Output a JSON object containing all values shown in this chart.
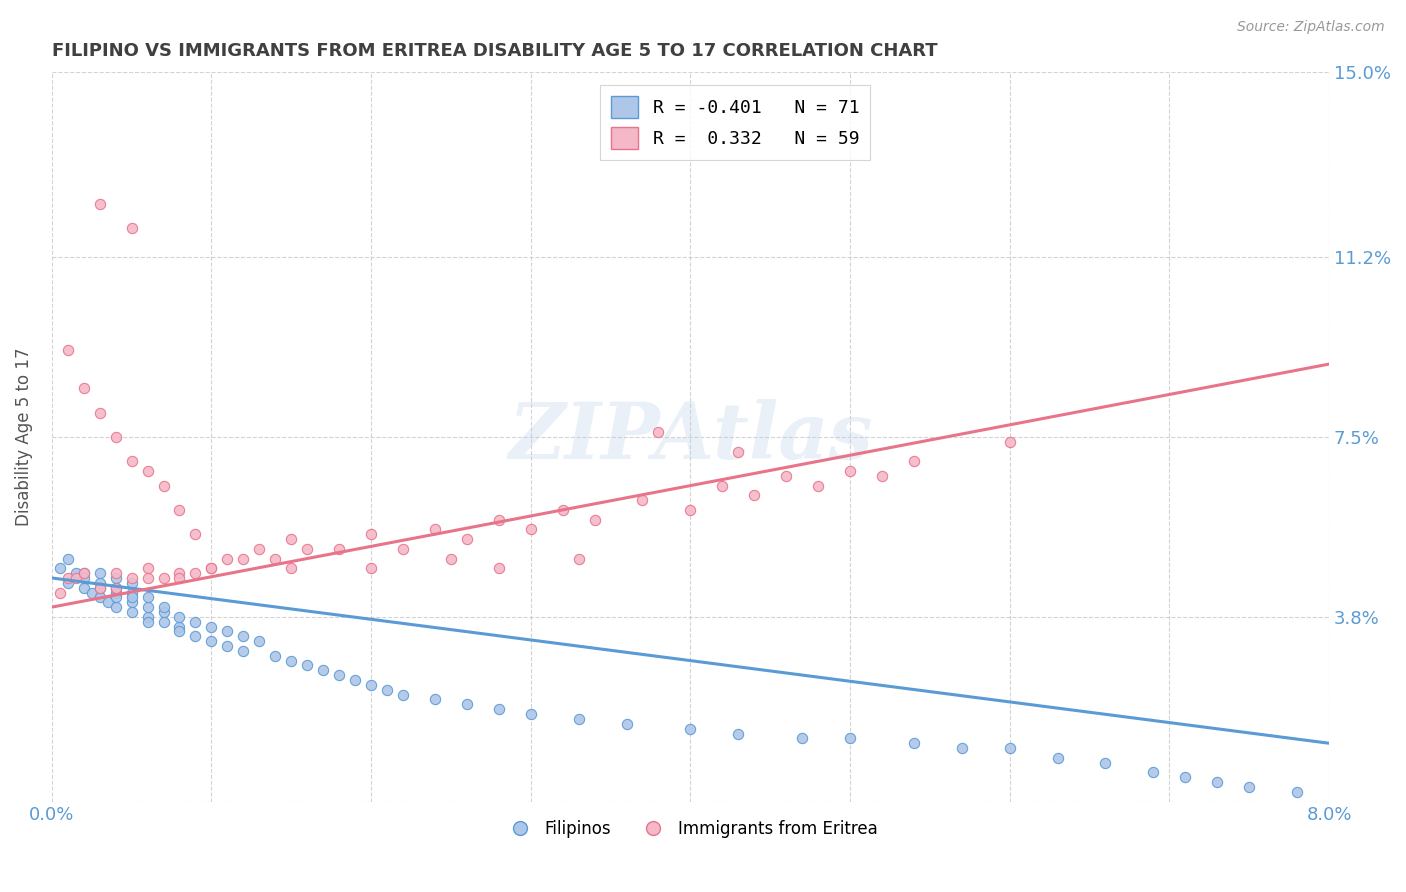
{
  "title": "FILIPINO VS IMMIGRANTS FROM ERITREA DISABILITY AGE 5 TO 17 CORRELATION CHART",
  "source": "Source: ZipAtlas.com",
  "ylabel": "Disability Age 5 to 17",
  "xmin": 0.0,
  "xmax": 0.08,
  "ymin": 0.0,
  "ymax": 0.15,
  "ytick_vals": [
    0.0,
    0.038,
    0.075,
    0.112,
    0.15
  ],
  "ytick_labels": [
    "",
    "3.8%",
    "7.5%",
    "11.2%",
    "15.0%"
  ],
  "xtick_vals": [
    0.0,
    0.01,
    0.02,
    0.03,
    0.04,
    0.05,
    0.06,
    0.07,
    0.08
  ],
  "xtick_labels": [
    "0.0%",
    "",
    "",
    "",
    "",
    "",
    "",
    "",
    "8.0%"
  ],
  "legend_entries": [
    {
      "label": "R = -0.401   N = 71",
      "color": "#aec6e8"
    },
    {
      "label": "R =  0.332   N = 59",
      "color": "#f4b8c8"
    }
  ],
  "bottom_legend": [
    "Filipinos",
    "Immigrants from Eritrea"
  ],
  "blue_color": "#5b9bd5",
  "pink_color": "#e8748a",
  "blue_scatter_color": "#aec6e8",
  "pink_scatter_color": "#f4b8c8",
  "watermark": "ZIPAtlas",
  "background_color": "#ffffff",
  "grid_color": "#c8c8c8",
  "title_color": "#404040",
  "axis_label_color": "#5b9bd5",
  "blue_line_x": [
    0.0,
    0.08
  ],
  "blue_line_y": [
    0.046,
    0.012
  ],
  "pink_line_x": [
    0.0,
    0.08
  ],
  "pink_line_y": [
    0.04,
    0.09
  ],
  "filipinos_x": [
    0.0005,
    0.001,
    0.001,
    0.0015,
    0.002,
    0.002,
    0.002,
    0.0025,
    0.003,
    0.003,
    0.003,
    0.003,
    0.0035,
    0.004,
    0.004,
    0.004,
    0.004,
    0.004,
    0.005,
    0.005,
    0.005,
    0.005,
    0.005,
    0.006,
    0.006,
    0.006,
    0.006,
    0.007,
    0.007,
    0.007,
    0.008,
    0.008,
    0.008,
    0.009,
    0.009,
    0.01,
    0.01,
    0.011,
    0.011,
    0.012,
    0.012,
    0.013,
    0.014,
    0.015,
    0.016,
    0.017,
    0.018,
    0.019,
    0.02,
    0.021,
    0.022,
    0.024,
    0.026,
    0.028,
    0.03,
    0.033,
    0.036,
    0.04,
    0.043,
    0.047,
    0.05,
    0.054,
    0.057,
    0.06,
    0.063,
    0.066,
    0.069,
    0.071,
    0.073,
    0.075,
    0.078
  ],
  "filipinos_y": [
    0.048,
    0.05,
    0.045,
    0.047,
    0.044,
    0.047,
    0.046,
    0.043,
    0.045,
    0.042,
    0.047,
    0.044,
    0.041,
    0.043,
    0.046,
    0.04,
    0.044,
    0.042,
    0.041,
    0.043,
    0.039,
    0.042,
    0.045,
    0.038,
    0.04,
    0.042,
    0.037,
    0.039,
    0.037,
    0.04,
    0.036,
    0.038,
    0.035,
    0.037,
    0.034,
    0.036,
    0.033,
    0.035,
    0.032,
    0.034,
    0.031,
    0.033,
    0.03,
    0.029,
    0.028,
    0.027,
    0.026,
    0.025,
    0.024,
    0.023,
    0.022,
    0.021,
    0.02,
    0.019,
    0.018,
    0.017,
    0.016,
    0.015,
    0.014,
    0.013,
    0.013,
    0.012,
    0.011,
    0.011,
    0.009,
    0.008,
    0.006,
    0.005,
    0.004,
    0.003,
    0.002
  ],
  "eritrea_x": [
    0.0005,
    0.001,
    0.001,
    0.0015,
    0.002,
    0.002,
    0.003,
    0.003,
    0.003,
    0.004,
    0.004,
    0.005,
    0.005,
    0.005,
    0.006,
    0.006,
    0.007,
    0.007,
    0.008,
    0.008,
    0.009,
    0.009,
    0.01,
    0.011,
    0.012,
    0.013,
    0.014,
    0.015,
    0.016,
    0.018,
    0.02,
    0.022,
    0.024,
    0.026,
    0.028,
    0.03,
    0.032,
    0.034,
    0.037,
    0.04,
    0.042,
    0.044,
    0.046,
    0.048,
    0.05,
    0.052,
    0.054,
    0.038,
    0.043,
    0.06,
    0.028,
    0.033,
    0.02,
    0.025,
    0.015,
    0.01,
    0.008,
    0.006,
    0.004
  ],
  "eritrea_y": [
    0.043,
    0.046,
    0.093,
    0.046,
    0.047,
    0.085,
    0.044,
    0.08,
    0.123,
    0.047,
    0.075,
    0.046,
    0.07,
    0.118,
    0.048,
    0.068,
    0.046,
    0.065,
    0.047,
    0.06,
    0.047,
    0.055,
    0.048,
    0.05,
    0.05,
    0.052,
    0.05,
    0.054,
    0.052,
    0.052,
    0.055,
    0.052,
    0.056,
    0.054,
    0.058,
    0.056,
    0.06,
    0.058,
    0.062,
    0.06,
    0.065,
    0.063,
    0.067,
    0.065,
    0.068,
    0.067,
    0.07,
    0.076,
    0.072,
    0.074,
    0.048,
    0.05,
    0.048,
    0.05,
    0.048,
    0.048,
    0.046,
    0.046,
    0.044
  ]
}
